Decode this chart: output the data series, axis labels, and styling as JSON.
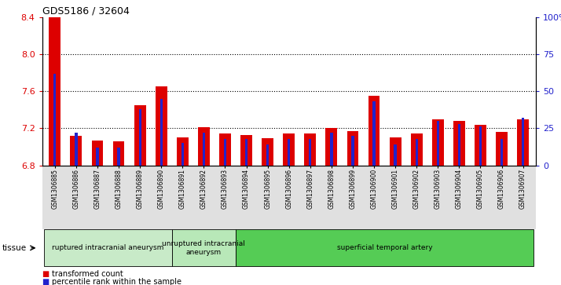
{
  "title": "GDS5186 / 32604",
  "samples": [
    "GSM1306885",
    "GSM1306886",
    "GSM1306887",
    "GSM1306888",
    "GSM1306889",
    "GSM1306890",
    "GSM1306891",
    "GSM1306892",
    "GSM1306893",
    "GSM1306894",
    "GSM1306895",
    "GSM1306896",
    "GSM1306897",
    "GSM1306898",
    "GSM1306899",
    "GSM1306900",
    "GSM1306901",
    "GSM1306902",
    "GSM1306903",
    "GSM1306904",
    "GSM1306905",
    "GSM1306906",
    "GSM1306907"
  ],
  "red_values": [
    8.4,
    7.12,
    7.07,
    7.06,
    7.45,
    7.65,
    7.1,
    7.21,
    7.14,
    7.13,
    7.09,
    7.14,
    7.14,
    7.2,
    7.17,
    7.55,
    7.1,
    7.14,
    7.3,
    7.28,
    7.24,
    7.16,
    7.3
  ],
  "blue_percentiles": [
    62,
    22,
    12,
    12,
    38,
    45,
    15,
    22,
    18,
    18,
    14,
    18,
    18,
    22,
    20,
    43,
    14,
    18,
    30,
    28,
    26,
    18,
    32
  ],
  "ylim_left": [
    6.8,
    8.4
  ],
  "ylim_right": [
    0,
    100
  ],
  "yticks_left": [
    6.8,
    7.2,
    7.6,
    8.0,
    8.4
  ],
  "yticks_right": [
    0,
    25,
    50,
    75,
    100
  ],
  "groups": [
    {
      "label": "ruptured intracranial aneurysm",
      "start": 0,
      "end": 6,
      "color": "#c8eac8"
    },
    {
      "label": "unruptured intracranial\naneurysm",
      "start": 6,
      "end": 9,
      "color": "#b8e8b8"
    },
    {
      "label": "superficial temporal artery",
      "start": 9,
      "end": 23,
      "color": "#55cc55"
    }
  ],
  "legend_items": [
    {
      "label": "transformed count",
      "color": "#dd0000"
    },
    {
      "label": "percentile rank within the sample",
      "color": "#2222cc"
    }
  ],
  "tissue_label": "tissue",
  "red_bar_width": 0.55,
  "blue_bar_width": 0.12,
  "background_color": "#ffffff",
  "red_color": "#dd0000",
  "blue_color": "#2222cc",
  "grid_color": "#000000",
  "xticklabel_bg": "#d8d8d8"
}
